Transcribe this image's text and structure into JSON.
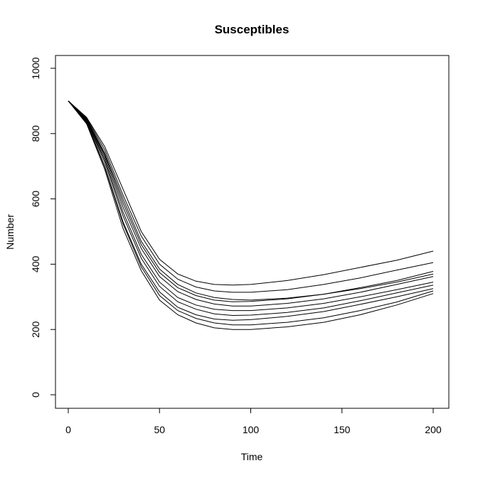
{
  "chart_data": {
    "type": "line",
    "title": "Susceptibles",
    "xlabel": "Time",
    "ylabel": "Number",
    "xlim": [
      0,
      200
    ],
    "ylim": [
      0,
      1000
    ],
    "x_ticks": [
      0,
      50,
      100,
      150,
      200
    ],
    "y_ticks": [
      0,
      200,
      400,
      600,
      800,
      1000
    ],
    "grid": false,
    "legend": "none",
    "line_color": "#000000",
    "x": [
      0,
      10,
      20,
      30,
      40,
      50,
      60,
      70,
      80,
      90,
      100,
      120,
      140,
      160,
      180,
      200
    ],
    "series": [
      {
        "values": [
          900,
          840,
          720,
          560,
          430,
          345,
          298,
          275,
          262,
          258,
          258,
          266,
          280,
          300,
          322,
          345
        ]
      },
      {
        "values": [
          900,
          835,
          700,
          530,
          400,
          315,
          268,
          245,
          232,
          228,
          230,
          240,
          255,
          277,
          300,
          325
        ]
      },
      {
        "values": [
          900,
          845,
          740,
          600,
          470,
          385,
          338,
          312,
          298,
          292,
          290,
          296,
          308,
          325,
          345,
          370
        ]
      },
      {
        "values": [
          900,
          830,
          690,
          510,
          380,
          290,
          245,
          220,
          205,
          200,
          200,
          208,
          222,
          245,
          275,
          310
        ]
      },
      {
        "values": [
          900,
          850,
          760,
          630,
          500,
          415,
          370,
          348,
          338,
          336,
          338,
          350,
          368,
          390,
          412,
          440
        ]
      },
      {
        "values": [
          900,
          842,
          728,
          575,
          448,
          362,
          316,
          292,
          278,
          272,
          272,
          280,
          294,
          314,
          338,
          362
        ]
      },
      {
        "values": [
          900,
          838,
          712,
          548,
          418,
          332,
          285,
          262,
          248,
          243,
          244,
          252,
          266,
          288,
          312,
          336
        ]
      },
      {
        "values": [
          900,
          848,
          750,
          612,
          486,
          400,
          354,
          330,
          318,
          314,
          314,
          322,
          338,
          358,
          382,
          405
        ]
      },
      {
        "values": [
          900,
          833,
          698,
          524,
          392,
          304,
          258,
          234,
          220,
          214,
          214,
          222,
          236,
          258,
          284,
          318
        ]
      },
      {
        "values": [
          900,
          844,
          735,
          588,
          460,
          374,
          328,
          304,
          290,
          285,
          286,
          294,
          308,
          328,
          350,
          378
        ]
      }
    ]
  }
}
